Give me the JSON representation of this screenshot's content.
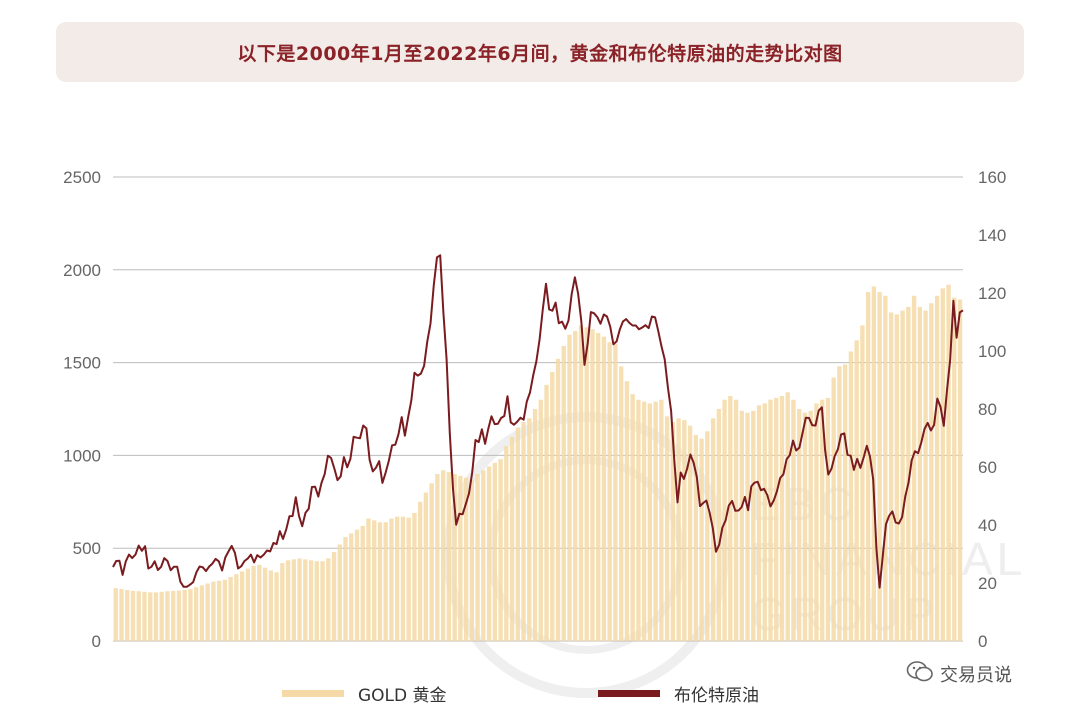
{
  "title": "以下是2000年1月至2022年6月间，黄金和布伦特原油的走势比对图",
  "colors": {
    "gold": "#f5d9a6",
    "oil": "#7a1c1f",
    "grid": "#bdbdbd",
    "title": "#8a2227"
  },
  "watermark": {
    "brand_lines": [
      "EBC",
      "FINANCIAL",
      "GROUP"
    ],
    "account": "交易员说"
  },
  "chart_data": {
    "type": "bar+line",
    "legend": [
      "GOLD 黄金",
      "布伦特原油"
    ],
    "legend_position": "bottom",
    "grid": true,
    "left_axis": {
      "ticks": [
        "2500",
        "2000",
        "1500",
        "1000",
        "500",
        "0"
      ],
      "min": 0,
      "max": 2500
    },
    "right_axis": {
      "ticks": [
        "160",
        "140",
        "120",
        "100",
        "80",
        "60",
        "40",
        "20",
        "0"
      ],
      "min": 0,
      "max": 160
    },
    "x_range": [
      "2000-01",
      "2022-06"
    ],
    "gold_quarterly": [
      285,
      280,
      275,
      270,
      268,
      265,
      262,
      262,
      265,
      268,
      270,
      272,
      275,
      280,
      290,
      300,
      310,
      320,
      325,
      330,
      345,
      360,
      375,
      390,
      405,
      410,
      395,
      380,
      370,
      420,
      435,
      440,
      445,
      440,
      435,
      430,
      430,
      445,
      480,
      520,
      560,
      580,
      600,
      620,
      660,
      650,
      640,
      640,
      660,
      670,
      670,
      665,
      690,
      750,
      800,
      850,
      900,
      920,
      910,
      900,
      890,
      880,
      870,
      900,
      920,
      940,
      960,
      980,
      1050,
      1100,
      1150,
      1180,
      1200,
      1250,
      1300,
      1380,
      1450,
      1520,
      1590,
      1650,
      1670,
      1700,
      1690,
      1680,
      1660,
      1640,
      1610,
      1600,
      1480,
      1400,
      1330,
      1300,
      1290,
      1280,
      1290,
      1300,
      1210,
      1180,
      1200,
      1190,
      1160,
      1110,
      1090,
      1130,
      1200,
      1250,
      1300,
      1320,
      1300,
      1240,
      1230,
      1240,
      1270,
      1280,
      1300,
      1310,
      1320,
      1340,
      1300,
      1250,
      1230,
      1240,
      1280,
      1300,
      1310,
      1420,
      1480,
      1490,
      1560,
      1620,
      1700,
      1880,
      1910,
      1880,
      1860,
      1770,
      1760,
      1780,
      1800,
      1860,
      1800,
      1780,
      1820,
      1860,
      1900,
      1920,
      1850,
      1840
    ],
    "oil_monthly": [
      25.5,
      27.6,
      27.7,
      22.8,
      27.5,
      29.8,
      28.6,
      29.8,
      32.9,
      31.1,
      32.7,
      25.0,
      25.6,
      27.5,
      24.5,
      25.6,
      28.6,
      27.6,
      24.4,
      25.6,
      25.6,
      20.4,
      18.7,
      18.7,
      19.4,
      20.3,
      23.7,
      25.7,
      25.4,
      24.1,
      25.7,
      26.7,
      28.3,
      27.5,
      24.3,
      28.8,
      30.9,
      32.8,
      30.4,
      25.0,
      25.8,
      27.6,
      28.4,
      29.8,
      27.1,
      29.6,
      28.8,
      29.8,
      31.2,
      30.9,
      33.8,
      33.4,
      37.9,
      35.2,
      38.4,
      43.0,
      43.1,
      49.6,
      43.1,
      39.6,
      44.2,
      45.6,
      53.1,
      53.2,
      49.8,
      54.5,
      57.6,
      63.9,
      63.1,
      59.5,
      55.5,
      56.8,
      63.4,
      59.9,
      62.8,
      70.4,
      70.1,
      69.9,
      74.3,
      73.3,
      62.5,
      58.5,
      59.8,
      62.0,
      54.5,
      58.0,
      62.1,
      67.5,
      67.7,
      71.3,
      77.2,
      70.8,
      77.1,
      82.9,
      92.5,
      91.5,
      92.2,
      94.9,
      103.3,
      109.5,
      122.8,
      132.3,
      133.0,
      113.2,
      97.1,
      71.6,
      52.4,
      40.1,
      43.9,
      43.7,
      47.2,
      50.9,
      58.1,
      69.3,
      68.6,
      73.0,
      68.0,
      73.2,
      77.5,
      74.8,
      74.9,
      76.9,
      77.6,
      84.4,
      75.4,
      74.6,
      75.6,
      77.0,
      76.3,
      82.6,
      85.7,
      91.6,
      96.5,
      104.0,
      114.4,
      123.2,
      114.3,
      113.9,
      116.7,
      109.6,
      110.1,
      107.7,
      110.5,
      119.7,
      125.4,
      119.8,
      110.3,
      95.2,
      102.6,
      113.4,
      113.0,
      111.7,
      109.4,
      112.6,
      111.9,
      108.4,
      102.3,
      103.3,
      107.4,
      110.2,
      111.0,
      109.7,
      108.8,
      108.8,
      107.5,
      108.1,
      108.9,
      107.9,
      111.9,
      111.6,
      106.8,
      101.6,
      97.1,
      87.4,
      79.4,
      62.3,
      47.8,
      58.1,
      55.9,
      59.5,
      64.3,
      61.5,
      56.6,
      46.5,
      47.6,
      48.4,
      44.3,
      38.9,
      30.8,
      33.2,
      39.1,
      41.6,
      46.7,
      48.3,
      44.9,
      45.0,
      46.2,
      49.7,
      45.1,
      53.3,
      54.6,
      54.9,
      52.0,
      52.5,
      50.3,
      46.4,
      48.5,
      51.7,
      56.2,
      57.5,
      62.7,
      64.1,
      69.1,
      65.7,
      66.7,
      71.8,
      77.0,
      76.9,
      74.4,
      74.3,
      79.4,
      80.6,
      65.9,
      57.4,
      59.4,
      63.8,
      66.1,
      71.2,
      71.6,
      64.2,
      63.9,
      59.0,
      62.8,
      59.7,
      63.2,
      67.3,
      63.6,
      55.7,
      32.0,
      18.4,
      29.4,
      40.3,
      43.2,
      44.7,
      40.9,
      40.5,
      42.7,
      49.9,
      54.6,
      62.3,
      65.4,
      64.8,
      68.5,
      73.1,
      75.2,
      72.6,
      74.5,
      83.6,
      80.8,
      74.2,
      86.5,
      97.1,
      117.3,
      104.6,
      113.3,
      114.0
    ]
  }
}
